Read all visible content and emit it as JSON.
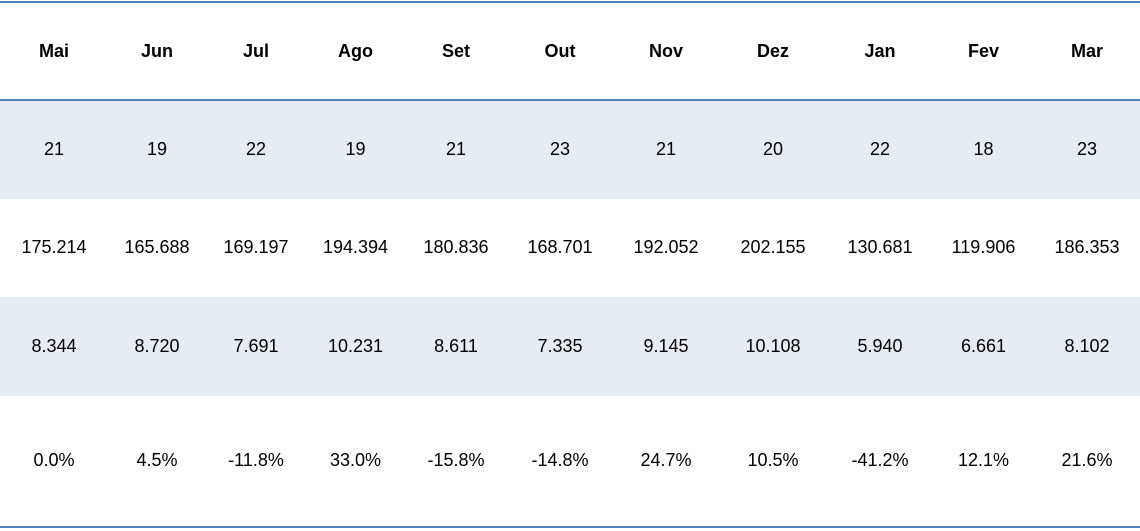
{
  "table": {
    "headers": [
      "Mai",
      "Jun",
      "Jul",
      "Ago",
      "Set",
      "Out",
      "Nov",
      "Dez",
      "Jan",
      "Fev",
      "Mar"
    ],
    "rows": [
      [
        "21",
        "19",
        "22",
        "19",
        "21",
        "23",
        "21",
        "20",
        "22",
        "18",
        "23"
      ],
      [
        "175.214",
        "165.688",
        "169.197",
        "194.394",
        "180.836",
        "168.701",
        "192.052",
        "202.155",
        "130.681",
        "119.906",
        "186.353"
      ],
      [
        "8.344",
        "8.720",
        "7.691",
        "10.231",
        "8.611",
        "7.335",
        "9.145",
        "10.108",
        "5.940",
        "6.661",
        "8.102"
      ],
      [
        "0.0%",
        "4.5%",
        "-11.8%",
        "33.0%",
        "-15.8%",
        "-14.8%",
        "24.7%",
        "10.5%",
        "-41.2%",
        "12.1%",
        "21.6%"
      ]
    ]
  },
  "colors": {
    "border": "#4f81bd",
    "band": "#e7ebf2"
  }
}
